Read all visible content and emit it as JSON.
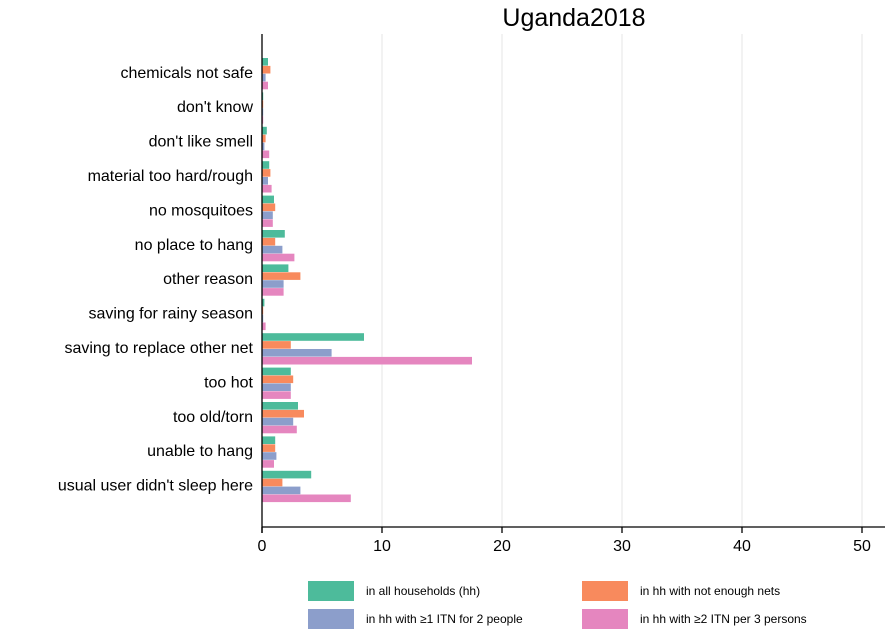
{
  "chart_data": {
    "type": "bar",
    "orientation": "horizontal",
    "title": "Uganda2018",
    "xlim": [
      0,
      52
    ],
    "xticks": [
      0,
      10,
      20,
      30,
      40,
      50
    ],
    "grid": true,
    "legend_position": "bottom",
    "categories": [
      "chemicals not safe",
      "don't know",
      "don't like smell",
      "material too hard/rough",
      "no mosquitoes",
      "no place to hang",
      "other reason",
      "saving for rainy season",
      "saving to replace other net",
      "too hot",
      "too old/torn",
      "unable to hang",
      "usual user didn't sleep here"
    ],
    "series": [
      {
        "name": "in all households (hh)",
        "color": "#4dbb9b",
        "values": [
          0.5,
          0.1,
          0.4,
          0.6,
          1.0,
          1.9,
          2.2,
          0.2,
          8.5,
          2.4,
          3.0,
          1.1,
          4.1
        ]
      },
      {
        "name": "in hh with not enough nets",
        "color": "#f88a5d",
        "values": [
          0.7,
          0.1,
          0.3,
          0.7,
          1.1,
          1.1,
          3.2,
          0.1,
          2.4,
          2.6,
          3.5,
          1.1,
          1.7
        ]
      },
      {
        "name": "in hh with ≥1 ITN for 2 people",
        "color": "#8c9ecb",
        "values": [
          0.3,
          0.1,
          0.2,
          0.5,
          0.9,
          1.7,
          1.8,
          0.1,
          5.8,
          2.4,
          2.6,
          1.2,
          3.2
        ]
      },
      {
        "name": "in hh with ≥2 ITN per 3 persons",
        "color": "#e586bf",
        "values": [
          0.5,
          0.1,
          0.6,
          0.8,
          0.9,
          2.7,
          1.8,
          0.3,
          17.5,
          2.4,
          2.9,
          1.0,
          7.4
        ]
      }
    ]
  }
}
